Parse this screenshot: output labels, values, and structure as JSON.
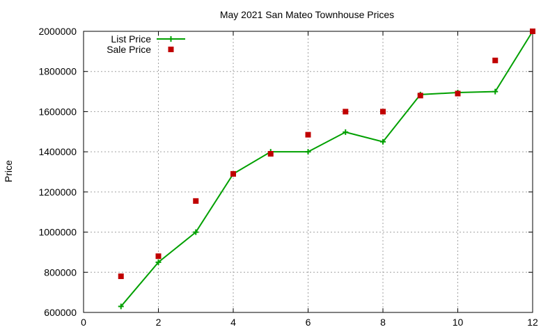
{
  "chart_data": {
    "type": "scatter",
    "title": "May 2021 San Mateo Townhouse Prices",
    "xlabel": "",
    "ylabel": "Price",
    "xlim": [
      0,
      12
    ],
    "ylim": [
      600000,
      2000000
    ],
    "xticks": [
      0,
      2,
      4,
      6,
      8,
      10,
      12
    ],
    "yticks": [
      600000,
      800000,
      1000000,
      1200000,
      1400000,
      1600000,
      1800000,
      2000000
    ],
    "grid": true,
    "legend_position": "top-left",
    "series": [
      {
        "name": "List Price",
        "style": "line-with-plus-markers",
        "color": "#00a000",
        "x": [
          1,
          2,
          3,
          4,
          5,
          6,
          7,
          8,
          9,
          10,
          11,
          12
        ],
        "y": [
          630000,
          850000,
          1000000,
          1290000,
          1400000,
          1400000,
          1498000,
          1450000,
          1685000,
          1695000,
          1700000,
          2000000
        ]
      },
      {
        "name": "Sale Price",
        "style": "square-markers",
        "color": "#c00000",
        "x": [
          1,
          2,
          3,
          4,
          5,
          6,
          7,
          8,
          9,
          10,
          11,
          12
        ],
        "y": [
          780000,
          880000,
          1155000,
          1290000,
          1390000,
          1485000,
          1600000,
          1600000,
          1680000,
          1690000,
          1855000,
          2000000
        ]
      }
    ]
  }
}
